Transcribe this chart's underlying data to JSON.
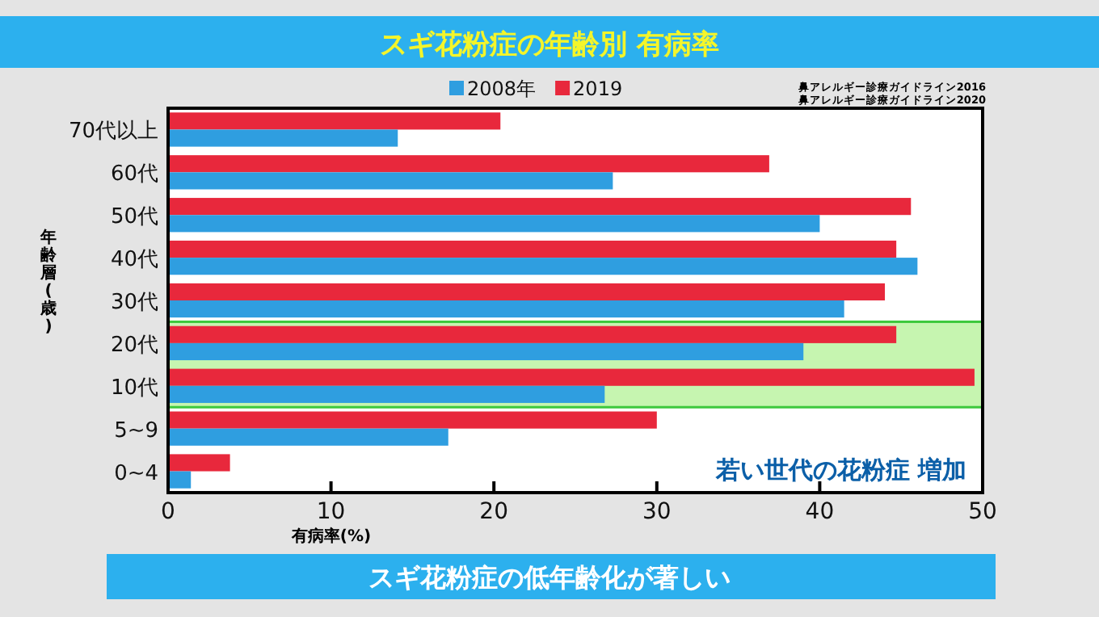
{
  "chart_data": {
    "type": "bar",
    "orientation": "horizontal",
    "title": "スギ花粉症の年齢別  有病率",
    "categories": [
      "70代以上",
      "60代",
      "50代",
      "40代",
      "30代",
      "20代",
      "10代",
      "5~9",
      "0~4"
    ],
    "series": [
      {
        "name": "2019",
        "color": "#e8283c",
        "values": [
          20.4,
          36.9,
          45.6,
          44.7,
          44.0,
          44.7,
          49.5,
          30.0,
          3.8
        ]
      },
      {
        "name": "2008年",
        "color": "#2f9ee0",
        "values": [
          14.1,
          27.3,
          40.0,
          46.0,
          41.5,
          39.0,
          26.8,
          17.2,
          1.4
        ]
      }
    ],
    "xlim": [
      0,
      50
    ],
    "xticks": [
      0,
      10,
      20,
      30,
      40,
      50
    ],
    "xlabel": "有病率(%)",
    "ylabel": "年齢層(歳)",
    "legend": "top",
    "bands": [
      {
        "axis": "y",
        "from": "20代",
        "to": "10代",
        "color": "#c6f5b0"
      }
    ],
    "annotations": [
      "鼻アレルギー診療ガイドライン2016",
      "鼻アレルギー診療ガイドライン2020",
      "スギ花粉症の低年齢化が著しい",
      "若い世代の花粉症 増加"
    ]
  }
}
